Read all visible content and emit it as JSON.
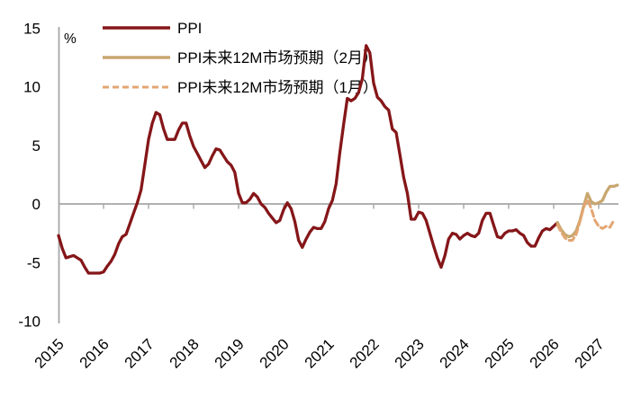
{
  "chart_data": {
    "type": "line",
    "title": "",
    "unit_label": "%",
    "x_tick_labels": [
      "2015",
      "2016",
      "2017",
      "2018",
      "2019",
      "2020",
      "2021",
      "2022",
      "2023",
      "2024",
      "2025",
      "2026",
      "2027"
    ],
    "x_frequency": "monthly",
    "months_per_year_tick": 12,
    "y_ticks": [
      15,
      10,
      5,
      0,
      -5,
      -10
    ],
    "ylim": [
      -10,
      15
    ],
    "grid": false,
    "legend_position": "top-left",
    "axis_color": "#A6A6A6",
    "text_color": "#000000",
    "series": [
      {
        "id": "ppi",
        "name": "PPI",
        "color": "#851619",
        "style": "solid",
        "start_index": 0,
        "values": [
          -2.7,
          -3.8,
          -4.6,
          -4.5,
          -4.4,
          -4.6,
          -4.8,
          -5.4,
          -5.9,
          -5.9,
          -5.9,
          -5.9,
          -5.8,
          -5.3,
          -4.9,
          -4.3,
          -3.4,
          -2.8,
          -2.6,
          -1.7,
          -0.8,
          0.1,
          1.2,
          3.3,
          5.5,
          6.9,
          7.8,
          7.6,
          6.4,
          5.5,
          5.5,
          5.5,
          6.3,
          6.9,
          6.9,
          5.8,
          4.9,
          4.3,
          3.7,
          3.1,
          3.4,
          4.1,
          4.7,
          4.6,
          4.1,
          3.6,
          3.3,
          2.7,
          0.9,
          0.1,
          0.1,
          0.4,
          0.9,
          0.6,
          0.0,
          -0.3,
          -0.8,
          -1.2,
          -1.6,
          -1.4,
          -0.5,
          0.1,
          -0.4,
          -1.5,
          -3.1,
          -3.7,
          -3.0,
          -2.4,
          -2.0,
          -2.1,
          -2.1,
          -1.5,
          -0.4,
          0.3,
          1.7,
          4.4,
          6.8,
          9.0,
          8.8,
          9.0,
          9.5,
          10.7,
          13.5,
          12.9,
          10.3,
          9.1,
          8.8,
          8.3,
          8.0,
          6.4,
          6.1,
          4.2,
          2.3,
          0.9,
          -1.3,
          -1.3,
          -0.7,
          -0.8,
          -1.4,
          -2.5,
          -3.6,
          -4.6,
          -5.4,
          -4.4,
          -3.0,
          -2.5,
          -2.6,
          -3.0,
          -2.7,
          -2.5,
          -2.7,
          -2.8,
          -2.5,
          -1.4,
          -0.8,
          -0.8,
          -1.8,
          -2.8,
          -2.9,
          -2.5,
          -2.3,
          -2.3,
          -2.2,
          -2.5,
          -2.7,
          -3.3,
          -3.6,
          -3.6,
          -2.9,
          -2.3,
          -2.1,
          -2.2,
          -1.9,
          -1.6
        ]
      },
      {
        "id": "ppi-forecast-feb",
        "name": "PPI未来12M市场预期（2月）",
        "color": "#C8A76F",
        "style": "solid",
        "start_index": 133,
        "values": [
          -1.6,
          -2.2,
          -2.6,
          -2.8,
          -2.7,
          -2.3,
          -1.4,
          -0.2,
          0.9,
          0.2,
          0.0,
          0.1,
          0.3,
          1.0,
          1.5,
          1.5,
          1.6
        ]
      },
      {
        "id": "ppi-forecast-jan",
        "name": "PPI未来12M市场预期（1月）",
        "color": "#E3A672",
        "style": "dashed",
        "start_index": 133,
        "values": [
          -1.8,
          -2.4,
          -2.9,
          -3.1,
          -3.1,
          -2.6,
          -1.5,
          -0.3,
          0.4,
          -0.4,
          -1.4,
          -1.9,
          -2.1,
          -1.9,
          -2.0,
          -1.4
        ]
      }
    ]
  }
}
